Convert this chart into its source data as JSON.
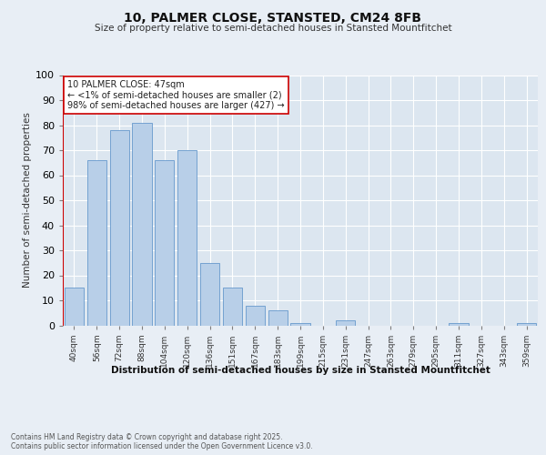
{
  "title": "10, PALMER CLOSE, STANSTED, CM24 8FB",
  "subtitle": "Size of property relative to semi-detached houses in Stansted Mountfitchet",
  "xlabel": "Distribution of semi-detached houses by size in Stansted Mountfitchet",
  "ylabel": "Number of semi-detached properties",
  "categories": [
    "40sqm",
    "56sqm",
    "72sqm",
    "88sqm",
    "104sqm",
    "120sqm",
    "136sqm",
    "151sqm",
    "167sqm",
    "183sqm",
    "199sqm",
    "215sqm",
    "231sqm",
    "247sqm",
    "263sqm",
    "279sqm",
    "295sqm",
    "311sqm",
    "327sqm",
    "343sqm",
    "359sqm"
  ],
  "values": [
    15,
    66,
    78,
    81,
    66,
    70,
    25,
    15,
    8,
    6,
    1,
    0,
    2,
    0,
    0,
    0,
    0,
    1,
    0,
    0,
    1
  ],
  "bar_color": "#b8cfe8",
  "bar_edge_color": "#6699cc",
  "highlight_color": "#cc0000",
  "annotation_text": "10 PALMER CLOSE: 47sqm\n← <1% of semi-detached houses are smaller (2)\n98% of semi-detached houses are larger (427) →",
  "annotation_box_color": "#ffffff",
  "annotation_box_edge": "#cc0000",
  "footer_text": "Contains HM Land Registry data © Crown copyright and database right 2025.\nContains public sector information licensed under the Open Government Licence v3.0.",
  "ylim": [
    0,
    100
  ],
  "yticks": [
    0,
    10,
    20,
    30,
    40,
    50,
    60,
    70,
    80,
    90,
    100
  ],
  "background_color": "#e8eef5",
  "plot_bg_color": "#dce6f0"
}
